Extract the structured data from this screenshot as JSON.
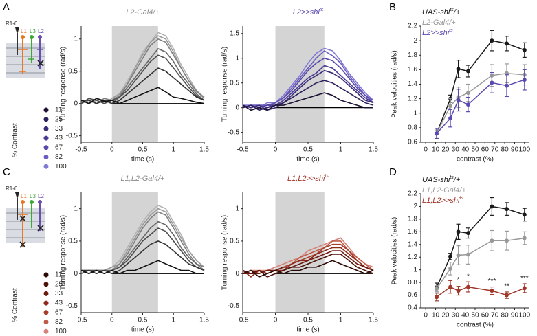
{
  "figure": {
    "panels": [
      "A",
      "B",
      "C",
      "D"
    ],
    "diagrams": [
      {
        "labels": [
          "R1-6",
          "L1",
          "L3",
          "L2"
        ]
      },
      {
        "labels": [
          "R1-6",
          "L1",
          "L3",
          "L2"
        ]
      }
    ]
  },
  "chart_data": [
    {
      "type": "line",
      "title": {
        "text": "L2-Gal4/+"
      },
      "title_color": "#8c8c8c",
      "xlabel": "time (s)",
      "ylabel": "Turning response (rad/s)",
      "stimulus": [
        0,
        0.75
      ],
      "xlim": [
        -0.5,
        1.5
      ],
      "xticks": [
        -0.5,
        0,
        0.5,
        1,
        1.5
      ],
      "ylim": [
        -0.6,
        1.2
      ],
      "yticks": [
        -0.5,
        0,
        0.5,
        1
      ],
      "x": [
        -0.5,
        -0.375,
        -0.25,
        -0.125,
        0,
        0.125,
        0.25,
        0.375,
        0.5,
        0.625,
        0.75,
        0.875,
        1,
        1.125,
        1.25,
        1.375,
        1.5
      ],
      "series": [
        {
          "color": "#111111",
          "values": [
            0.05,
            0.0,
            0.08,
            0.03,
            0.05,
            0.0,
            0.05,
            0.1,
            0.15,
            0.2,
            0.25,
            0.18,
            0.1,
            0.08,
            0.05,
            0.02,
            0.0
          ]
        },
        {
          "color": "#333333",
          "values": [
            0.05,
            0.05,
            0.0,
            0.05,
            0.0,
            0.05,
            0.15,
            0.25,
            0.35,
            0.45,
            0.55,
            0.5,
            0.4,
            0.3,
            0.2,
            0.1,
            0.05
          ]
        },
        {
          "color": "#4d4d4d",
          "values": [
            0.0,
            0.08,
            0.05,
            0.0,
            0.05,
            0.1,
            0.2,
            0.35,
            0.5,
            0.65,
            0.75,
            0.7,
            0.55,
            0.4,
            0.25,
            0.12,
            0.05
          ]
        },
        {
          "color": "#666666",
          "values": [
            0.05,
            0.0,
            0.08,
            0.05,
            0.0,
            0.1,
            0.25,
            0.4,
            0.55,
            0.7,
            0.85,
            0.8,
            0.65,
            0.45,
            0.3,
            0.15,
            0.05
          ]
        },
        {
          "color": "#808080",
          "values": [
            0.0,
            0.05,
            0.0,
            0.08,
            0.05,
            0.12,
            0.3,
            0.5,
            0.7,
            0.9,
            1.0,
            0.95,
            0.75,
            0.55,
            0.35,
            0.2,
            0.08
          ]
        },
        {
          "color": "#999999",
          "values": [
            0.05,
            0.0,
            0.05,
            0.0,
            0.08,
            0.15,
            0.3,
            0.55,
            0.75,
            0.95,
            1.05,
            1.0,
            0.8,
            0.55,
            0.35,
            0.18,
            0.1
          ]
        },
        {
          "color": "#b3b3b3",
          "values": [
            0.0,
            0.05,
            0.0,
            0.05,
            0.05,
            0.15,
            0.35,
            0.55,
            0.8,
            0.95,
            1.1,
            1.05,
            0.85,
            0.6,
            0.4,
            0.2,
            0.1
          ]
        }
      ]
    },
    {
      "type": "line",
      "title": {
        "text": "L2>>shi",
        "sup": "ts"
      },
      "title_color": "#5a4ab0",
      "xlabel": "time (s)",
      "ylabel": "Turning response (rad/s)",
      "legend_title": "% Contrast",
      "stimulus": [
        0,
        0.75
      ],
      "xlim": [
        -0.5,
        1.5
      ],
      "xticks": [
        -0.5,
        0,
        0.5,
        1,
        1.5
      ],
      "ylim": [
        -0.7,
        1.65
      ],
      "yticks": [
        -0.5,
        0,
        0.5,
        1,
        1.5
      ],
      "x": [
        -0.5,
        -0.375,
        -0.25,
        -0.125,
        0,
        0.125,
        0.25,
        0.375,
        0.5,
        0.625,
        0.75,
        0.875,
        1,
        1.125,
        1.25,
        1.375,
        1.5
      ],
      "series": [
        {
          "name": "11",
          "color": "#1c1133",
          "values": [
            0.05,
            -0.05,
            0.0,
            -0.05,
            0.05,
            0.05,
            0.1,
            0.15,
            0.2,
            0.25,
            0.3,
            0.25,
            0.15,
            0.1,
            0.05,
            0.0,
            0.0
          ]
        },
        {
          "name": "25",
          "color": "#2d1f5c",
          "values": [
            0.0,
            0.05,
            -0.05,
            0.0,
            0.05,
            0.1,
            0.2,
            0.3,
            0.4,
            0.5,
            0.55,
            0.5,
            0.4,
            0.3,
            0.2,
            0.1,
            0.05
          ]
        },
        {
          "name": "33",
          "color": "#3b2c7a",
          "values": [
            0.05,
            0.0,
            0.05,
            -0.05,
            0.0,
            0.1,
            0.25,
            0.4,
            0.55,
            0.65,
            0.75,
            0.7,
            0.6,
            0.45,
            0.3,
            0.15,
            0.1
          ]
        },
        {
          "name": "43",
          "color": "#4a3a95",
          "values": [
            0.0,
            0.05,
            0.0,
            0.05,
            0.05,
            0.15,
            0.3,
            0.45,
            0.6,
            0.7,
            0.85,
            0.8,
            0.65,
            0.5,
            0.35,
            0.2,
            0.1
          ]
        },
        {
          "name": "67",
          "color": "#5a4aab",
          "values": [
            0.05,
            0.0,
            0.05,
            0.0,
            0.1,
            0.2,
            0.35,
            0.55,
            0.75,
            0.9,
            1.0,
            0.95,
            0.8,
            0.6,
            0.4,
            0.25,
            0.1
          ]
        },
        {
          "name": "82",
          "color": "#6b5cc0",
          "values": [
            0.0,
            0.05,
            0.05,
            0.05,
            0.1,
            0.2,
            0.4,
            0.6,
            0.8,
            1.0,
            1.15,
            1.05,
            0.9,
            0.65,
            0.45,
            0.25,
            0.15
          ]
        },
        {
          "name": "100",
          "color": "#8279d4",
          "values": [
            0.05,
            0.05,
            0.0,
            0.1,
            0.1,
            0.25,
            0.45,
            0.65,
            0.9,
            1.1,
            1.2,
            1.15,
            0.95,
            0.7,
            0.5,
            0.3,
            0.15
          ]
        }
      ]
    },
    {
      "type": "errorbar",
      "xlabel": "contrast (%)",
      "ylabel": "Peak velocities (rad/s)",
      "xlim": [
        -5,
        105
      ],
      "xticks": [
        0,
        10,
        20,
        30,
        40,
        50,
        60,
        70,
        80,
        90,
        100
      ],
      "ylim": [
        0.6,
        2.2
      ],
      "yticks": [
        0.6,
        0.8,
        1,
        1.2,
        1.4,
        1.6,
        1.8,
        2,
        2.2
      ],
      "x": [
        11,
        25,
        33,
        43,
        67,
        82,
        100
      ],
      "series": [
        {
          "name": {
            "text": "UAS-shi",
            "sup": "ts",
            "after": "/+"
          },
          "color": "#1a1a1a",
          "values": [
            0.72,
            1.2,
            1.61,
            1.58,
            2.0,
            1.96,
            1.87
          ],
          "errors": [
            0.07,
            0.05,
            0.12,
            0.08,
            0.14,
            0.1,
            0.1
          ]
        },
        {
          "name": {
            "text": "L2-Gal4/+"
          },
          "color": "#999999",
          "values": [
            0.72,
            1.1,
            1.22,
            1.28,
            1.52,
            1.55,
            1.53
          ],
          "errors": [
            0.05,
            0.1,
            0.14,
            0.12,
            0.15,
            0.13,
            0.14
          ]
        },
        {
          "name": {
            "text": "L2>>shi",
            "sup": "ts"
          },
          "color": "#5a4ab0",
          "values": [
            0.72,
            0.93,
            1.18,
            1.12,
            1.42,
            1.38,
            1.46
          ],
          "errors": [
            0.07,
            0.12,
            0.15,
            0.1,
            0.14,
            0.15,
            0.14
          ]
        }
      ]
    },
    {
      "type": "line",
      "title": {
        "text": "L1,L2-Gal4/+"
      },
      "title_color": "#8c8c8c",
      "xlabel": "time (s)",
      "ylabel": "Turning response (rad/s)",
      "stimulus": [
        0,
        0.75
      ],
      "xlim": [
        -0.5,
        1.5
      ],
      "xticks": [
        -0.5,
        0,
        0.5,
        1,
        1.5
      ],
      "ylim": [
        -0.6,
        1.25
      ],
      "yticks": [
        -0.5,
        0,
        0.5,
        1
      ],
      "x": [
        -0.5,
        -0.375,
        -0.25,
        -0.125,
        0,
        0.125,
        0.25,
        0.375,
        0.5,
        0.625,
        0.75,
        0.875,
        1,
        1.125,
        1.25,
        1.375,
        1.5
      ],
      "series": [
        {
          "color": "#111111",
          "values": [
            0.05,
            0.0,
            0.05,
            0.0,
            0.05,
            0.0,
            0.05,
            0.05,
            0.1,
            0.15,
            0.2,
            0.15,
            0.1,
            0.05,
            0.05,
            0.0,
            0.0
          ]
        },
        {
          "color": "#333333",
          "values": [
            0.05,
            0.05,
            0.0,
            0.05,
            0.0,
            0.05,
            0.15,
            0.25,
            0.35,
            0.45,
            0.5,
            0.45,
            0.35,
            0.25,
            0.15,
            0.1,
            0.05
          ]
        },
        {
          "color": "#4d4d4d",
          "values": [
            0.0,
            0.05,
            0.05,
            0.0,
            0.05,
            0.1,
            0.2,
            0.35,
            0.5,
            0.6,
            0.7,
            0.65,
            0.5,
            0.35,
            0.2,
            0.1,
            0.05
          ]
        },
        {
          "color": "#666666",
          "values": [
            0.05,
            0.0,
            0.05,
            0.05,
            0.05,
            0.1,
            0.25,
            0.4,
            0.55,
            0.7,
            0.8,
            0.75,
            0.6,
            0.4,
            0.25,
            0.15,
            0.05
          ]
        },
        {
          "color": "#808080",
          "values": [
            0.0,
            0.05,
            0.05,
            0.05,
            0.05,
            0.15,
            0.3,
            0.5,
            0.7,
            0.85,
            0.95,
            0.9,
            0.7,
            0.5,
            0.3,
            0.15,
            0.1
          ]
        },
        {
          "color": "#999999",
          "values": [
            0.05,
            0.05,
            0.0,
            0.05,
            0.1,
            0.15,
            0.35,
            0.55,
            0.75,
            0.9,
            1.0,
            0.95,
            0.75,
            0.55,
            0.35,
            0.2,
            0.1
          ]
        },
        {
          "color": "#b3b3b3",
          "values": [
            0.05,
            0.0,
            0.05,
            0.05,
            0.1,
            0.2,
            0.4,
            0.6,
            0.8,
            0.95,
            1.05,
            1.0,
            0.8,
            0.6,
            0.35,
            0.2,
            0.1
          ]
        }
      ]
    },
    {
      "type": "line",
      "title": {
        "text": "L1,L2>>shi",
        "sup": "ts"
      },
      "title_color": "#a0362a",
      "xlabel": "time (s)",
      "ylabel": "Turning response (rad/s)",
      "legend_title": "% Contrast",
      "stimulus": [
        0,
        0.75
      ],
      "xlim": [
        -0.5,
        1.5
      ],
      "xticks": [
        -0.5,
        0,
        0.5,
        1,
        1.5
      ],
      "ylim": [
        -0.6,
        1.25
      ],
      "yticks": [
        -0.5,
        0,
        0.5,
        1
      ],
      "x": [
        -0.5,
        -0.375,
        -0.25,
        -0.125,
        0,
        0.125,
        0.25,
        0.375,
        0.5,
        0.625,
        0.75,
        0.875,
        1,
        1.125,
        1.25,
        1.375,
        1.5
      ],
      "series": [
        {
          "name": "11",
          "color": "#2b0a06",
          "values": [
            0.0,
            0.05,
            -0.05,
            0.0,
            0.05,
            0.0,
            0.05,
            0.05,
            0.1,
            0.1,
            0.15,
            0.2,
            0.15,
            0.1,
            0.05,
            0.0,
            0.05
          ]
        },
        {
          "name": "25",
          "color": "#4d1108",
          "values": [
            0.05,
            0.0,
            0.05,
            -0.05,
            0.0,
            0.05,
            0.1,
            0.1,
            0.15,
            0.2,
            0.25,
            0.3,
            0.3,
            0.2,
            0.1,
            0.05,
            0.0
          ]
        },
        {
          "name": "33",
          "color": "#6e1a0f",
          "values": [
            0.0,
            0.0,
            0.0,
            0.05,
            0.05,
            0.1,
            0.1,
            0.15,
            0.2,
            0.25,
            0.3,
            0.35,
            0.35,
            0.25,
            0.15,
            0.1,
            0.05
          ]
        },
        {
          "name": "43",
          "color": "#8e2a1c",
          "values": [
            0.05,
            -0.05,
            0.05,
            0.0,
            0.05,
            0.05,
            0.15,
            0.2,
            0.2,
            0.3,
            0.35,
            0.4,
            0.4,
            0.3,
            0.2,
            0.1,
            0.05
          ]
        },
        {
          "name": "67",
          "color": "#a83d2c",
          "values": [
            0.0,
            0.05,
            0.0,
            0.05,
            0.05,
            0.1,
            0.15,
            0.2,
            0.25,
            0.3,
            0.4,
            0.45,
            0.45,
            0.35,
            0.2,
            0.1,
            0.05
          ]
        },
        {
          "name": "82",
          "color": "#c05a48",
          "values": [
            0.05,
            0.0,
            0.05,
            0.0,
            0.05,
            0.1,
            0.15,
            0.25,
            0.3,
            0.35,
            0.4,
            0.5,
            0.5,
            0.35,
            0.25,
            0.15,
            0.05
          ]
        },
        {
          "name": "100",
          "color": "#d4837a",
          "values": [
            0.0,
            0.05,
            0.05,
            0.05,
            0.1,
            0.15,
            0.2,
            0.25,
            0.35,
            0.4,
            0.45,
            0.5,
            0.55,
            0.4,
            0.25,
            0.15,
            0.1
          ]
        }
      ]
    },
    {
      "type": "errorbar",
      "xlabel": "contrast (%)",
      "ylabel": "Peak velocities (rad/s)",
      "xlim": [
        -5,
        105
      ],
      "xticks": [
        0,
        10,
        20,
        30,
        40,
        50,
        60,
        70,
        80,
        90,
        100
      ],
      "ylim": [
        0.4,
        2.2
      ],
      "yticks": [
        0.4,
        0.6,
        0.8,
        1,
        1.2,
        1.4,
        1.6,
        1.8,
        2,
        2.2
      ],
      "x": [
        11,
        25,
        33,
        43,
        67,
        82,
        100
      ],
      "series": [
        {
          "name": {
            "text": "UAS-shi",
            "sup": "ts",
            "after": "/+"
          },
          "color": "#1a1a1a",
          "values": [
            0.72,
            1.21,
            1.6,
            1.58,
            2.0,
            1.96,
            1.87
          ],
          "errors": [
            0.07,
            0.05,
            0.12,
            0.08,
            0.14,
            0.1,
            0.1
          ]
        },
        {
          "name": {
            "text": "L1,L2-Gal4/+"
          },
          "color": "#999999",
          "values": [
            0.7,
            1.02,
            1.23,
            1.24,
            1.46,
            1.46,
            1.5
          ],
          "errors": [
            0.05,
            0.1,
            0.15,
            0.15,
            0.16,
            0.15,
            0.1
          ]
        },
        {
          "name": {
            "text": "L1,L2>>shi",
            "sup": "ts"
          },
          "color": "#a0362a",
          "values": [
            0.57,
            0.73,
            0.67,
            0.73,
            0.67,
            0.6,
            0.71
          ],
          "errors": [
            0.06,
            0.1,
            0.07,
            0.08,
            0.06,
            0.05,
            0.07
          ]
        }
      ],
      "annotations": [
        {
          "text": "*",
          "x": 33,
          "y": 0.84
        },
        {
          "text": "*",
          "x": 43,
          "y": 0.89
        },
        {
          "text": "***",
          "x": 67,
          "y": 0.82
        },
        {
          "text": "**",
          "x": 82,
          "y": 0.74
        },
        {
          "text": "***",
          "x": 100,
          "y": 0.86
        }
      ]
    }
  ]
}
